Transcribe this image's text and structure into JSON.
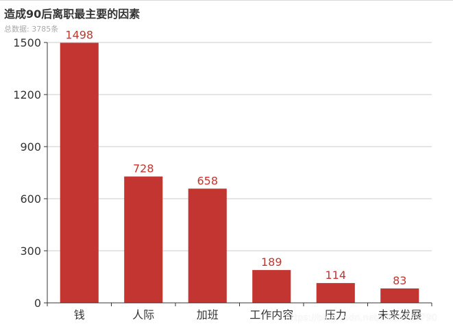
{
  "chart_data": {
    "type": "bar",
    "title": "造成90后离职最主要的因素",
    "subtitle": "总数据: 3785条",
    "categories": [
      "钱",
      "人际",
      "加班",
      "工作内容",
      "压力",
      "未来发展"
    ],
    "values": [
      1498,
      728,
      658,
      189,
      114,
      83
    ],
    "xlabel": "",
    "ylabel": "",
    "ylim": [
      0,
      1500
    ],
    "yticks": [
      0,
      300,
      600,
      900,
      1200,
      1500
    ],
    "grid": true,
    "legend": "none",
    "data_labels": true,
    "colors": {
      "bar": "#c23531",
      "data_label": "#c23531",
      "axis": "#333333",
      "grid": "#cccccc"
    }
  },
  "watermark": "https://blog.csdn.net/u013795790"
}
